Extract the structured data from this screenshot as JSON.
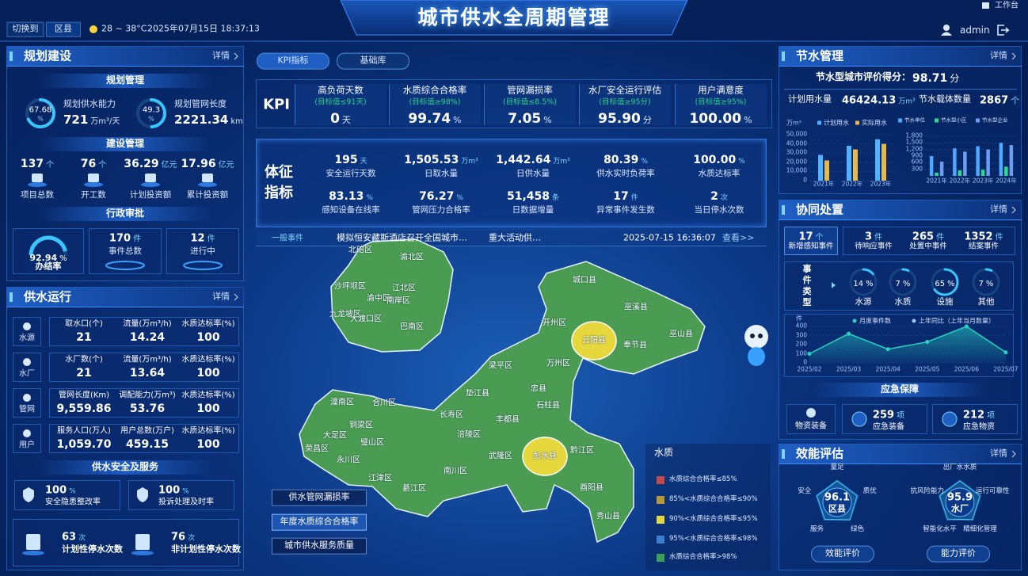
{
  "header": {
    "switch": "切换到",
    "district": "区县",
    "weather": "28 ~ 38°C",
    "datetime": "2025年07月15日 18:37:13",
    "title": "城市供水全周期管理",
    "workbench": "工作台",
    "user": "admin"
  },
  "planning": {
    "title": "规划建设",
    "more": "详情",
    "plan": {
      "title": "规划管理",
      "items": [
        {
          "percent": 67.68,
          "unit": "%",
          "label": "规划供水能力",
          "value": 721,
          "value_unit": "万m³/天"
        },
        {
          "percent": 49.3,
          "unit": "%",
          "label": "规划管网长度",
          "value": 2221.34,
          "value_unit": "km"
        }
      ]
    },
    "construction": {
      "title": "建设管理",
      "items": [
        {
          "value": 137,
          "unit": "个",
          "label": "项目总数"
        },
        {
          "value": 76,
          "unit": "个",
          "label": "开工数"
        },
        {
          "value": 36.29,
          "unit": "亿元",
          "label": "计划投资额"
        },
        {
          "value": 17.96,
          "unit": "亿元",
          "label": "累计投资额"
        }
      ]
    },
    "approval": {
      "title": "行政审批",
      "rate": 92.94,
      "rate_unit": "%",
      "rate_label": "办结率",
      "items": [
        {
          "value": 170,
          "unit": "件",
          "label": "事件总数"
        },
        {
          "value": 12,
          "unit": "件",
          "label": "进行中"
        }
      ]
    }
  },
  "operation": {
    "title": "供水运行",
    "more": "详情",
    "rows": [
      {
        "name": "水源",
        "cells": [
          {
            "label": "取水口(个)",
            "value": 21
          },
          {
            "label": "流量(万m³/h)",
            "value": 14.24
          },
          {
            "label": "水质达标率(%)",
            "value": 100
          }
        ]
      },
      {
        "name": "水厂",
        "cells": [
          {
            "label": "水厂数(个)",
            "value": 21
          },
          {
            "label": "流量(万m³/h)",
            "value": 13.64
          },
          {
            "label": "水质达标率(%)",
            "value": 100
          }
        ]
      },
      {
        "name": "管网",
        "cells": [
          {
            "label": "管网长度(Km)",
            "value": "9,559.86"
          },
          {
            "label": "调配能力(万m³)",
            "value": 53.76
          },
          {
            "label": "水质达标率(%)",
            "value": 100
          }
        ]
      },
      {
        "name": "用户",
        "cells": [
          {
            "label": "服务人口(万人)",
            "value": "1,059.70"
          },
          {
            "label": "用户总数(万户)",
            "value": 459.15
          },
          {
            "label": "水质达标率(%)",
            "value": 100
          }
        ]
      }
    ]
  },
  "safety": {
    "title": "供水安全及服务",
    "rates": [
      {
        "value": 100,
        "unit": "%",
        "label": "安全隐患整改率"
      },
      {
        "value": 100,
        "unit": "%",
        "label": "投诉处理及时率"
      }
    ],
    "counts": [
      {
        "value": 63,
        "unit": "次",
        "label": "计划性停水次数"
      },
      {
        "value": 76,
        "unit": "次",
        "label": "非计划性停水次数"
      }
    ]
  },
  "center": {
    "tabs": [
      "KPI指标",
      "基础库"
    ],
    "kpi_title": "KPI",
    "kpis": [
      {
        "name": "高负荷天数",
        "target": "(目标值≤91天)",
        "value": 0,
        "unit": "天"
      },
      {
        "name": "水质综合合格率",
        "target": "(目标值≥98%)",
        "value": 99.74,
        "unit": "%"
      },
      {
        "name": "管网漏损率",
        "target": "(目标值≤8.5%)",
        "value": 7.05,
        "unit": "%"
      },
      {
        "name": "水厂安全运行评估",
        "target": "(目标值≥95分)",
        "value": "95.90",
        "unit": "分"
      },
      {
        "name": "用户满意度",
        "target": "(目标值≥95%)",
        "value": "100.00",
        "unit": "%"
      }
    ],
    "vitals_title": "体征指标",
    "vitals": [
      {
        "value": 195,
        "unit": "天",
        "label": "安全运行天数"
      },
      {
        "value": "1,505.53",
        "unit": "万m³",
        "label": "日取水量"
      },
      {
        "value": "1,442.64",
        "unit": "万m³",
        "label": "日供水量"
      },
      {
        "value": 80.39,
        "unit": "%",
        "label": "供水实时负荷率"
      },
      {
        "value": "100.00",
        "unit": "%",
        "label": "水质达标率"
      },
      {
        "value": 83.13,
        "unit": "%",
        "label": "感知设备在线率"
      },
      {
        "value": 76.27,
        "unit": "%",
        "label": "管网压力合格率"
      },
      {
        "value": "51,458",
        "unit": "条",
        "label": "日数据增量"
      },
      {
        "value": 17,
        "unit": "件",
        "label": "异常事件发生数"
      },
      {
        "value": 2,
        "unit": "次",
        "label": "当日停水次数"
      }
    ]
  },
  "ticker": {
    "tag": "一般事件",
    "items": [
      "模拟恒安藏斯酒店召开全国城市…",
      "重大活动供…"
    ],
    "time": "2025-07-15 16:36:07",
    "more": "查看>>"
  },
  "map": {
    "districts": [
      {
        "name": "北碚区",
        "color": "#4a9c52"
      },
      {
        "name": "渝北区",
        "color": "#4a9c52"
      },
      {
        "name": "沙坪坝区",
        "color": "#4a9c52"
      },
      {
        "name": "江北区",
        "color": "#4a9c52"
      },
      {
        "name": "渝中区",
        "color": "#4a9c52"
      },
      {
        "name": "南岸区",
        "color": "#4a9c52"
      },
      {
        "name": "九龙坡区",
        "color": "#4a9c52"
      },
      {
        "name": "大渡口区",
        "color": "#4a9c52"
      },
      {
        "name": "巴南区",
        "color": "#4a9c52"
      },
      {
        "name": "城口县",
        "color": "#4a9c52"
      },
      {
        "name": "巫溪县",
        "color": "#4a9c52"
      },
      {
        "name": "开州区",
        "color": "#4a9c52"
      },
      {
        "name": "云阳县",
        "color": "#e6d83c"
      },
      {
        "name": "奉节县",
        "color": "#4a9c52"
      },
      {
        "name": "巫山县",
        "color": "#4a9c52"
      },
      {
        "name": "万州区",
        "color": "#4a9c52"
      },
      {
        "name": "梁平区",
        "color": "#4a9c52"
      },
      {
        "name": "忠县",
        "color": "#4a9c52"
      },
      {
        "name": "垫江县",
        "color": "#4a9c52"
      },
      {
        "name": "石柱县",
        "color": "#4a9c52"
      },
      {
        "name": "长寿区",
        "color": "#4a9c52"
      },
      {
        "name": "丰都县",
        "color": "#4a9c52"
      },
      {
        "name": "涪陵区",
        "color": "#4a9c52"
      },
      {
        "name": "武隆区",
        "color": "#4a9c52"
      },
      {
        "name": "彭水县",
        "color": "#e6d83c"
      },
      {
        "name": "黔江区",
        "color": "#4a9c52"
      },
      {
        "name": "酉阳县",
        "color": "#4a9c52"
      },
      {
        "name": "秀山县",
        "color": "#4a9c52"
      },
      {
        "name": "南川区",
        "color": "#4a9c52"
      },
      {
        "name": "綦江区",
        "color": "#4a9c52"
      },
      {
        "name": "江津区",
        "color": "#4a9c52"
      },
      {
        "name": "永川区",
        "color": "#4a9c52"
      },
      {
        "name": "璧山区",
        "color": "#4a9c52"
      },
      {
        "name": "铜梁区",
        "color": "#4a9c52"
      },
      {
        "name": "合川区",
        "color": "#4a9c52"
      },
      {
        "name": "潼南区",
        "color": "#4a9c52"
      },
      {
        "name": "大足区",
        "color": "#4a9c52"
      },
      {
        "name": "荣昌区",
        "color": "#4a9c52"
      }
    ],
    "buttons": [
      "供水管网漏损率",
      "年度水质综合合格率",
      "城市供水服务质量"
    ],
    "legend": {
      "title": "水质",
      "items": [
        {
          "label": "水质综合合格率≤85%",
          "color": "#c9484a"
        },
        {
          "label": "85%<水质综合合格率≤90%",
          "color": "#b59a35"
        },
        {
          "label": "90%<水质综合合格率≤95%",
          "color": "#e6d83c"
        },
        {
          "label": "95%<水质综合合格率≤98%",
          "color": "#3f7fd0"
        },
        {
          "label": "水质综合合格率>98%",
          "color": "#3fa05a"
        }
      ]
    }
  },
  "water_saving": {
    "title": "节水管理",
    "more": "详情",
    "score_label": "节水型城市评价得分：",
    "score": 98.71,
    "score_unit": "分",
    "planned_label": "计划用水量",
    "planned": 46424.13,
    "planned_unit": "万m³",
    "carrier_label": "节水载体数量",
    "carrier": 2867,
    "carrier_unit": "个"
  },
  "coordination": {
    "title": "协同处置",
    "more": "详情",
    "stats": [
      {
        "value": 17,
        "unit": "个",
        "label": "新增感知事件"
      },
      {
        "value": 3,
        "unit": "件",
        "label": "待响应事件"
      },
      {
        "value": 265,
        "unit": "件",
        "label": "处置中事件"
      },
      {
        "value": 1352,
        "unit": "件",
        "label": "结案事件"
      }
    ],
    "event_types": {
      "title": "事件类型",
      "items": [
        {
          "value": 14,
          "unit": "%",
          "label": "水源"
        },
        {
          "value": 7,
          "unit": "%",
          "label": "水质"
        },
        {
          "value": 65,
          "unit": "%",
          "label": "设施"
        },
        {
          "value": 7,
          "unit": "%",
          "label": "其他"
        }
      ]
    }
  },
  "emergency": {
    "title": "应急保障",
    "equipment_label": "物资装备",
    "items": [
      {
        "value": 259,
        "unit": "项",
        "label": "应急装备"
      },
      {
        "value": 212,
        "unit": "项",
        "label": "应急物资"
      }
    ]
  },
  "evaluation": {
    "title": "效能评估",
    "more": "详情",
    "buttons": [
      "效能评价",
      "能力评价"
    ]
  },
  "chart_data": [
    {
      "type": "bar",
      "y_unit": "万m³",
      "categories": [
        "2021年",
        "2022年",
        "2023年"
      ],
      "series": [
        {
          "name": "计划用水",
          "color": "#4fb3ff",
          "values": [
            28000,
            38000,
            45000
          ]
        },
        {
          "name": "实际用水",
          "color": "#e8b84a",
          "values": [
            22000,
            34000,
            40000
          ]
        }
      ],
      "ylim": [
        0,
        50000
      ],
      "yticks": [
        0,
        {
          "value": 10000,
          "label": "10,000"
        },
        {
          "value": 20000,
          "label": "20,000"
        },
        {
          "value": 30000,
          "label": "30,000"
        },
        {
          "value": 40000,
          "label": "40,000"
        },
        {
          "value": 50000,
          "label": "50,000"
        }
      ]
    },
    {
      "type": "bar",
      "categories": [
        "2021年",
        "2022年",
        "2023年",
        "2024年"
      ],
      "series": [
        {
          "name": "节水单位",
          "color": "#4fa8ff",
          "values": [
            900,
            1250,
            1350,
            1500
          ]
        },
        {
          "name": "节水型小区",
          "color": "#2ddc8c",
          "values": [
            150,
            250,
            280,
            420
          ]
        },
        {
          "name": "节水型企业",
          "color": "#6f9cf0",
          "values": [
            650,
            1100,
            1200,
            1400
          ]
        }
      ],
      "ylim": [
        0,
        1800
      ],
      "yticks": [
        300,
        600,
        900,
        {
          "value": 1200,
          "label": "1,200"
        },
        {
          "value": 1500,
          "label": "1,500"
        },
        {
          "value": 1800,
          "label": "1,800"
        }
      ]
    },
    {
      "type": "line",
      "y_unit": "件",
      "categories": [
        "2025/02",
        "2025/03",
        "2025/04",
        "2025/05",
        "2025/06",
        "2025/07"
      ],
      "series": [
        {
          "name": "月度事件数",
          "color": "#27d3c3",
          "values": [
            100,
            320,
            150,
            230,
            400,
            115
          ]
        },
        {
          "name": "上年同比（上年当月数量）",
          "color": "#9fc7ff",
          "values": [
            null,
            null,
            null,
            null,
            null,
            null
          ]
        }
      ],
      "ylim": [
        0,
        400
      ],
      "yticks": [
        0,
        100,
        200,
        300,
        400
      ]
    },
    {
      "type": "radar",
      "center_value": 96.1,
      "center_label": "区县",
      "categories": [
        "量足",
        "质优",
        "绿色",
        "服务",
        "安全"
      ],
      "values": [
        96,
        95,
        97,
        95,
        96
      ],
      "rlim": [
        0,
        100
      ],
      "color": "#3fd0ff"
    },
    {
      "type": "radar",
      "center_value": 95.9,
      "center_label": "水厂",
      "categories": [
        "出厂水水质",
        "运行可靠性",
        "精细化管理",
        "智能化水平",
        "抗风险能力"
      ],
      "values": [
        96,
        95,
        96,
        94,
        96
      ],
      "rlim": [
        0,
        100
      ],
      "color": "#3fd0ff"
    }
  ]
}
